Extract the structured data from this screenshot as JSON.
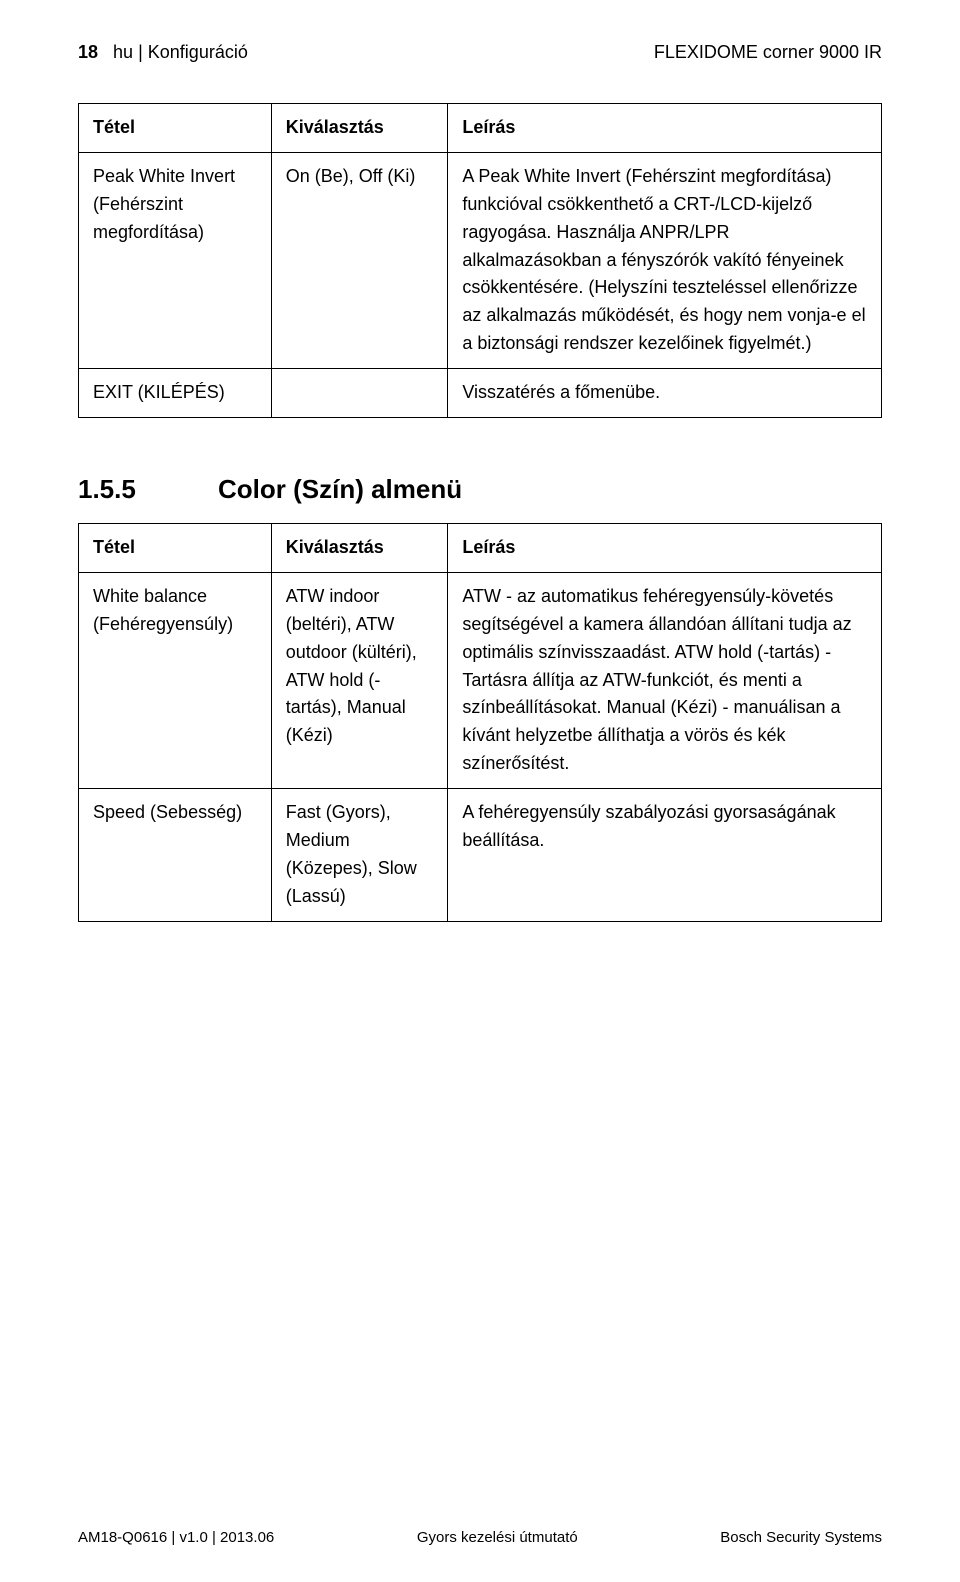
{
  "header": {
    "page_number": "18",
    "lang": "hu",
    "section": "Konfiguráció",
    "product": "FLEXIDOME corner 9000 IR"
  },
  "table1": {
    "headers": {
      "item": "Tétel",
      "selection": "Kiválasztás",
      "description": "Leírás"
    },
    "rows": [
      {
        "item": "Peak White Invert (Fehérszint megfordítása)",
        "selection": "On (Be), Off (Ki)",
        "description": "A Peak White Invert (Fehérszint megfordítása) funkcióval csökkenthető a CRT-/LCD-kijelző ragyogása. Használja ANPR/LPR alkalmazásokban a fényszórók vakító fényeinek csökkentésére. (Helyszíni teszteléssel ellenőrizze az alkalmazás működését, és hogy nem vonja-e el a biztonsági rendszer kezelőinek figyelmét.)"
      },
      {
        "item": "EXIT (KILÉPÉS)",
        "selection": "",
        "description": "Visszatérés a főmenübe."
      }
    ]
  },
  "section": {
    "number": "1.5.5",
    "title": "Color (Szín) almenü"
  },
  "table2": {
    "headers": {
      "item": "Tétel",
      "selection": "Kiválasztás",
      "description": "Leírás"
    },
    "rows": [
      {
        "item": "White balance (Fehéregyensúly)",
        "selection": "ATW indoor (beltéri), ATW outdoor (kültéri), ATW hold (-tartás), Manual (Kézi)",
        "description": "ATW - az automatikus fehéregyensúly-követés segítségével a kamera állandóan állítani tudja az optimális színvisszaadást. ATW hold (-tartás) -Tartásra állítja az ATW-funkciót, és menti a színbeállításokat. Manual (Kézi) - manuálisan a kívánt helyzetbe állíthatja a vörös és kék színerősítést."
      },
      {
        "item": "Speed (Sebesség)",
        "selection": "Fast (Gyors), Medium (Közepes), Slow (Lassú)",
        "description": "A fehéregyensúly szabályozási gyorsaságának beállítása."
      }
    ]
  },
  "footer": {
    "left": "AM18-Q0616 | v1.0 | 2013.06",
    "center": "Gyors kezelési útmutató",
    "right": "Bosch Security Systems"
  }
}
